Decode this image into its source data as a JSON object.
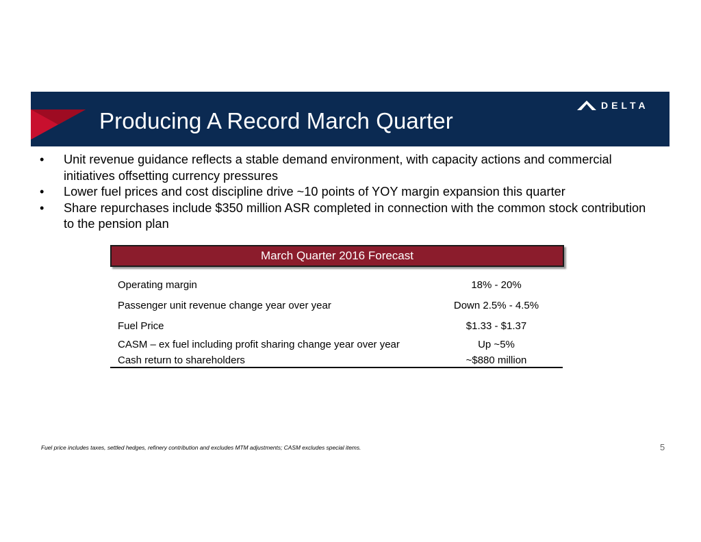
{
  "slide": {
    "title": "Producing A Record March Quarter",
    "brand": "DELTA",
    "page_number": "5"
  },
  "bullets": [
    "Unit revenue guidance reflects a stable demand environment, with capacity actions and commercial initiatives offsetting currency pressures",
    "Lower fuel prices and cost discipline drive ~10 points of YOY margin expansion this quarter",
    "Share repurchases include $350 million ASR completed in connection with the common stock contribution to the pension plan"
  ],
  "bullet_symbol": "•",
  "forecast": {
    "header": "March Quarter 2016 Forecast",
    "rows": [
      {
        "label": "Operating margin",
        "value": "18% - 20%"
      },
      {
        "label": "Passenger unit revenue change year over year",
        "value": "Down 2.5% - 4.5%"
      },
      {
        "label": "Fuel Price",
        "value": "$1.33 - $1.37"
      },
      {
        "label": "CASM – ex fuel including profit sharing change year over year",
        "value": "Up ~5%"
      },
      {
        "label": "Cash return to shareholders",
        "value": "~$880 million"
      }
    ]
  },
  "footnote": "Fuel price includes taxes, settled hedges, refinery contribution and excludes MTM adjustments; CASM excludes special items.",
  "colors": {
    "header_band": "#0b2a52",
    "table_header": "#8b1c2c",
    "wedge_red": "#c8102e"
  },
  "icons": {
    "logo": "delta-widget-icon"
  }
}
